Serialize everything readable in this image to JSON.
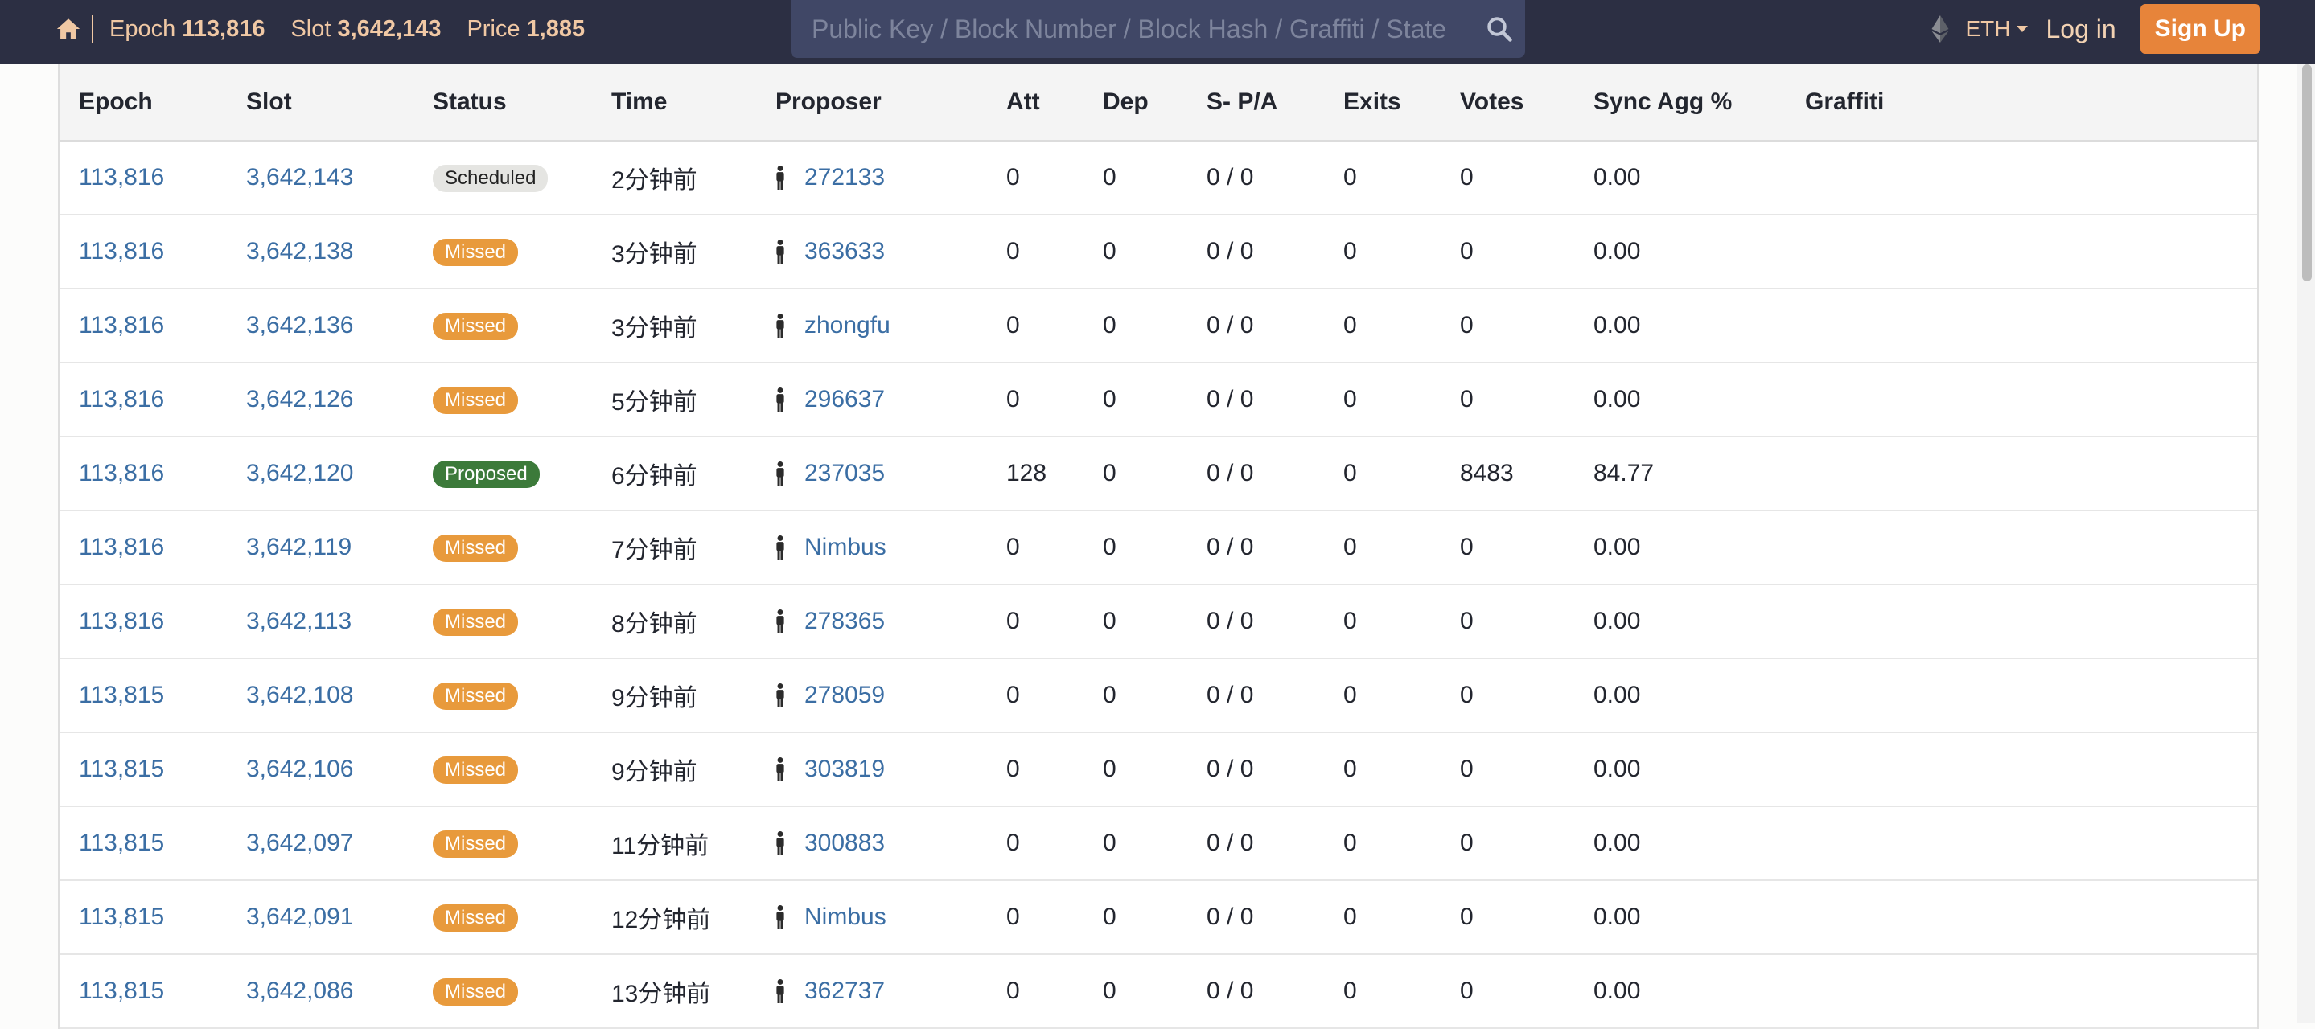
{
  "header": {
    "epoch_label": "Epoch",
    "epoch_value": "113,816",
    "slot_label": "Slot",
    "slot_value": "3,642,143",
    "price_label": "Price",
    "price_value": "1,885",
    "search_placeholder": "Public Key / Block Number / Block Hash / Graffiti / State",
    "currency": "ETH",
    "login_label": "Log in",
    "signup_label": "Sign Up"
  },
  "table": {
    "columns": [
      "Epoch",
      "Slot",
      "Status",
      "Time",
      "Proposer",
      "Att",
      "Dep",
      "S- P/A",
      "Exits",
      "Votes",
      "Sync Agg %",
      "Graffiti"
    ],
    "rows": [
      {
        "epoch": "113,816",
        "slot": "3,642,143",
        "status": "Scheduled",
        "status_type": "scheduled",
        "time": "2分钟前",
        "proposer": "272133",
        "att": "0",
        "dep": "0",
        "spa": "0 / 0",
        "exits": "0",
        "votes": "0",
        "sync": "0.00",
        "graffiti": ""
      },
      {
        "epoch": "113,816",
        "slot": "3,642,138",
        "status": "Missed",
        "status_type": "missed",
        "time": "3分钟前",
        "proposer": "363633",
        "att": "0",
        "dep": "0",
        "spa": "0 / 0",
        "exits": "0",
        "votes": "0",
        "sync": "0.00",
        "graffiti": ""
      },
      {
        "epoch": "113,816",
        "slot": "3,642,136",
        "status": "Missed",
        "status_type": "missed",
        "time": "3分钟前",
        "proposer": "zhongfu",
        "att": "0",
        "dep": "0",
        "spa": "0 / 0",
        "exits": "0",
        "votes": "0",
        "sync": "0.00",
        "graffiti": ""
      },
      {
        "epoch": "113,816",
        "slot": "3,642,126",
        "status": "Missed",
        "status_type": "missed",
        "time": "5分钟前",
        "proposer": "296637",
        "att": "0",
        "dep": "0",
        "spa": "0 / 0",
        "exits": "0",
        "votes": "0",
        "sync": "0.00",
        "graffiti": ""
      },
      {
        "epoch": "113,816",
        "slot": "3,642,120",
        "status": "Proposed",
        "status_type": "proposed",
        "time": "6分钟前",
        "proposer": "237035",
        "att": "128",
        "dep": "0",
        "spa": "0 / 0",
        "exits": "0",
        "votes": "8483",
        "sync": "84.77",
        "graffiti": ""
      },
      {
        "epoch": "113,816",
        "slot": "3,642,119",
        "status": "Missed",
        "status_type": "missed",
        "time": "7分钟前",
        "proposer": "Nimbus",
        "att": "0",
        "dep": "0",
        "spa": "0 / 0",
        "exits": "0",
        "votes": "0",
        "sync": "0.00",
        "graffiti": ""
      },
      {
        "epoch": "113,816",
        "slot": "3,642,113",
        "status": "Missed",
        "status_type": "missed",
        "time": "8分钟前",
        "proposer": "278365",
        "att": "0",
        "dep": "0",
        "spa": "0 / 0",
        "exits": "0",
        "votes": "0",
        "sync": "0.00",
        "graffiti": ""
      },
      {
        "epoch": "113,815",
        "slot": "3,642,108",
        "status": "Missed",
        "status_type": "missed",
        "time": "9分钟前",
        "proposer": "278059",
        "att": "0",
        "dep": "0",
        "spa": "0 / 0",
        "exits": "0",
        "votes": "0",
        "sync": "0.00",
        "graffiti": ""
      },
      {
        "epoch": "113,815",
        "slot": "3,642,106",
        "status": "Missed",
        "status_type": "missed",
        "time": "9分钟前",
        "proposer": "303819",
        "att": "0",
        "dep": "0",
        "spa": "0 / 0",
        "exits": "0",
        "votes": "0",
        "sync": "0.00",
        "graffiti": ""
      },
      {
        "epoch": "113,815",
        "slot": "3,642,097",
        "status": "Missed",
        "status_type": "missed",
        "time": "11分钟前",
        "proposer": "300883",
        "att": "0",
        "dep": "0",
        "spa": "0 / 0",
        "exits": "0",
        "votes": "0",
        "sync": "0.00",
        "graffiti": ""
      },
      {
        "epoch": "113,815",
        "slot": "3,642,091",
        "status": "Missed",
        "status_type": "missed",
        "time": "12分钟前",
        "proposer": "Nimbus",
        "att": "0",
        "dep": "0",
        "spa": "0 / 0",
        "exits": "0",
        "votes": "0",
        "sync": "0.00",
        "graffiti": ""
      },
      {
        "epoch": "113,815",
        "slot": "3,642,086",
        "status": "Missed",
        "status_type": "missed",
        "time": "13分钟前",
        "proposer": "362737",
        "att": "0",
        "dep": "0",
        "spa": "0 / 0",
        "exits": "0",
        "votes": "0",
        "sync": "0.00",
        "graffiti": ""
      }
    ]
  },
  "icons": {
    "home": "home-icon",
    "search": "search-icon",
    "currency": "ethereum-icon",
    "proposer": "person-icon"
  },
  "colors": {
    "navbar": "#2c2f43",
    "accent": "#e7843a",
    "link": "#3b6ea4",
    "missed": "#e89a3c",
    "proposed": "#3c7a3a",
    "scheduled": "#e5e5e2"
  }
}
